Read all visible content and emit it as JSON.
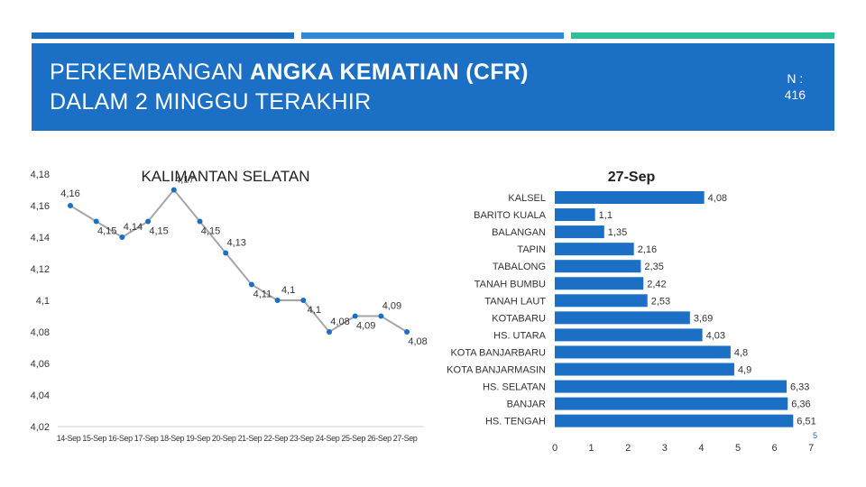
{
  "header": {
    "title_line1_normal": "PERKEMBANGAN ",
    "title_line1_bold": "ANGKA KEMATIAN (CFR)",
    "title_line2": "DALAM 2 MINGGU TERAKHIR",
    "n_label": "N :",
    "n_value": "416"
  },
  "page_number": "5",
  "colors": {
    "banner": "#1b6fc4",
    "bar": "#1b6fc4",
    "line": "#a6a6a6",
    "marker": "#1b6fc4",
    "accent_teal": "#2bbf9a"
  },
  "chart_data": [
    {
      "type": "line",
      "title": "KALIMANTAN SELATAN",
      "x": [
        "14-Sep",
        "15-Sep",
        "16-Sep",
        "17-Sep",
        "18-Sep",
        "19-Sep",
        "20-Sep",
        "21-Sep",
        "22-Sep",
        "23-Sep",
        "24-Sep",
        "25-Sep",
        "26-Sep",
        "27-Sep"
      ],
      "values": [
        4.16,
        4.15,
        4.14,
        4.15,
        4.17,
        4.15,
        4.13,
        4.11,
        4.1,
        4.1,
        4.08,
        4.09,
        4.09,
        4.08
      ],
      "data_labels": [
        "4,16",
        "4,15",
        "4,14",
        "4,15",
        "4,17",
        "4,15",
        "4,13",
        "4,11",
        "4,1",
        "4,1",
        "4,08",
        "4,09",
        "4,09",
        "4,08"
      ],
      "yticks": [
        "4,02",
        "4,04",
        "4,06",
        "4,08",
        "4,1",
        "4,12",
        "4,14",
        "4,16",
        "4,18"
      ],
      "ytick_values": [
        4.02,
        4.04,
        4.06,
        4.08,
        4.1,
        4.12,
        4.14,
        4.16,
        4.18
      ],
      "ylim": [
        4.02,
        4.18
      ],
      "grid": false
    },
    {
      "type": "bar",
      "orientation": "horizontal",
      "title": "27-Sep",
      "categories": [
        "KALSEL",
        "BARITO KUALA",
        "BALANGAN",
        "TAPIN",
        "TABALONG",
        "TANAH BUMBU",
        "TANAH LAUT",
        "KOTABARU",
        "HS. UTARA",
        "KOTA BANJARBARU",
        "KOTA BANJARMASIN",
        "HS. SELATAN",
        "BANJAR",
        "HS. TENGAH"
      ],
      "values": [
        4.08,
        1.1,
        1.35,
        2.16,
        2.35,
        2.42,
        2.53,
        3.69,
        4.03,
        4.8,
        4.9,
        6.33,
        6.36,
        6.51
      ],
      "data_labels": [
        "4,08",
        "1,1",
        "1,35",
        "2,16",
        "2,35",
        "2,42",
        "2,53",
        "3,69",
        "4,03",
        "4,8",
        "4,9",
        "6,33",
        "6,36",
        "6,51"
      ],
      "xticks": [
        "0",
        "1",
        "2",
        "3",
        "4",
        "5",
        "6",
        "7"
      ],
      "xtick_values": [
        0,
        1,
        2,
        3,
        4,
        5,
        6,
        7
      ],
      "xlim": [
        0,
        7
      ],
      "grid": false
    }
  ]
}
